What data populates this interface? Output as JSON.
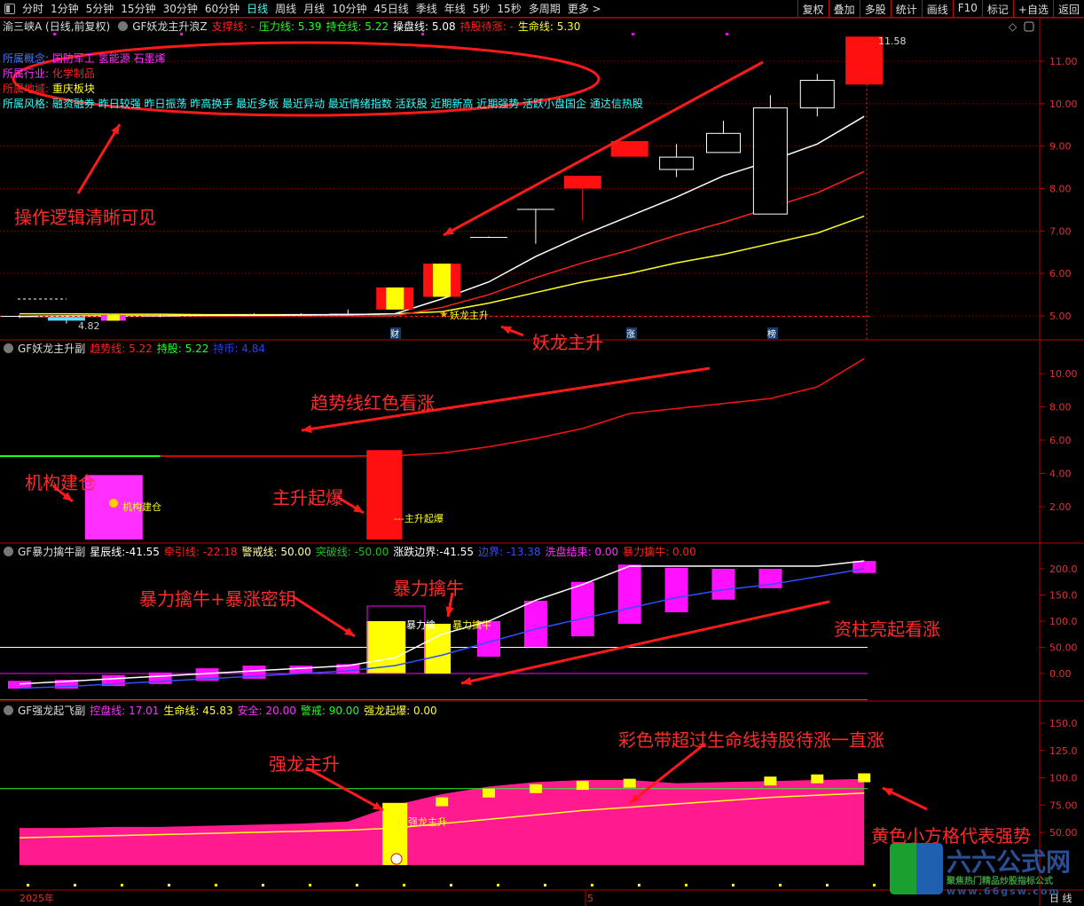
{
  "toolbar": {
    "periods": [
      "分时",
      "1分钟",
      "5分钟",
      "15分钟",
      "30分钟",
      "60分钟",
      "日线",
      "周线",
      "月线",
      "10分钟",
      "45日线",
      "季线",
      "年线",
      "5秒",
      "15秒",
      "多周期",
      "更多 >"
    ],
    "active": "日线",
    "actions": [
      "复权",
      "叠加",
      "多股",
      "统计",
      "画线",
      "F10",
      "标记",
      "+自选",
      "返回"
    ]
  },
  "panel1": {
    "stock": "渝三峡A (日线,前复权)",
    "indicator": "GF妖龙主升浪Z",
    "fields": [
      {
        "label": "支撑线:",
        "value": " -",
        "color": "#ff2020"
      },
      {
        "label": "压力线:",
        "value": " 5.39",
        "color": "#20ff20"
      },
      {
        "label": "持仓线:",
        "value": " 5.22",
        "color": "#20ff20"
      },
      {
        "label": "操盘线:",
        "value": " 5.08",
        "color": "#ffffff"
      },
      {
        "label": "持股待涨:",
        "value": " -",
        "color": "#ff2020"
      },
      {
        "label": "生命线:",
        "value": " 5.30",
        "color": "#ffff20"
      }
    ],
    "info": [
      {
        "label": "所属概念:",
        "value": "国防军工 氢能源 石墨烯",
        "lc": "#3a7cff",
        "vc": "#ff30ff"
      },
      {
        "label": "所属行业:",
        "value": "化学制品",
        "lc": "#ff30ff",
        "vc": "#ff2020"
      },
      {
        "label": "所属地域:",
        "value": "重庆板块",
        "lc": "#ff2020",
        "vc": "#ffff20"
      },
      {
        "label": "所属风格:",
        "value": "融资融券 昨日较强 昨日振荡 昨高换手 最近多板 最近异动 最近情绪指数 活跃股 近期新高 近期强势 活跃小盘国企 通达信热股",
        "lc": "#30ffff",
        "vc": "#30ffff"
      }
    ],
    "high_label": "11.58",
    "low_label": "4.82",
    "signal_label": "妖龙主升",
    "markers": [
      "财",
      "涨",
      "榜"
    ],
    "axis": [
      "11.00",
      "10.00",
      "9.00",
      "8.00",
      "7.00",
      "6.00",
      "5.00"
    ]
  },
  "panel2": {
    "indicator": "GF妖龙主升副",
    "fields": [
      {
        "label": "趋势线:",
        "value": " 5.22",
        "color": "#ff2020"
      },
      {
        "label": "持股:",
        "value": " 5.22",
        "color": "#20ff20"
      },
      {
        "label": "持币:",
        "value": " 4.84",
        "color": "#2040ff"
      }
    ],
    "labels": [
      "机构建仓",
      "---主升起爆"
    ],
    "axis": [
      "10.00",
      "8.00",
      "6.00",
      "4.00",
      "2.00"
    ]
  },
  "panel3": {
    "indicator": "GF暴力擒牛副",
    "fields": [
      {
        "label": "星辰线:",
        "value": "-41.55",
        "color": "#ffffff"
      },
      {
        "label": "牵引线:",
        "value": " -22.18",
        "color": "#ff2020"
      },
      {
        "label": "警戒线:",
        "value": " 50.00",
        "color": "#ffffa0"
      },
      {
        "label": "突破线:",
        "value": " -50.00",
        "color": "#20c020"
      },
      {
        "label": "涨跌边界:",
        "value": "-41.55",
        "color": "#ffffff"
      },
      {
        "label": "边界:",
        "value": " -13.38",
        "color": "#3050ff"
      },
      {
        "label": "洗盘结束:",
        "value": " 0.00",
        "color": "#ff30ff"
      },
      {
        "label": "暴力擒牛:",
        "value": " 0.00",
        "color": "#ff2020"
      }
    ],
    "labels": [
      "暴力擒",
      "暴力擒牛"
    ],
    "axis": [
      "200.0",
      "150.0",
      "100.0",
      "50.00",
      "0.00"
    ]
  },
  "panel4": {
    "indicator": "GF强龙起飞副",
    "fields": [
      {
        "label": "控盘线:",
        "value": " 17.01",
        "color": "#ff30ff"
      },
      {
        "label": "生命线:",
        "value": " 45.83",
        "color": "#ffff20"
      },
      {
        "label": "安全:",
        "value": " 20.00",
        "color": "#ff30ff"
      },
      {
        "label": "警戒:",
        "value": " 90.00",
        "color": "#20ff20"
      },
      {
        "label": "强龙起爆:",
        "value": " 0.00",
        "color": "#ffff20"
      }
    ],
    "labels": [
      "强龙主升"
    ],
    "axis": [
      "150.0",
      "125.0",
      "100.0",
      "75.00",
      "50.00"
    ]
  },
  "xaxis": {
    "labels": [
      "2025年",
      "5"
    ],
    "corner": "日 线"
  },
  "annotations": [
    "操作逻辑清晰可见",
    "妖龙主升",
    "趋势线红色看涨",
    "机构建仓",
    "主升起爆",
    "暴力擒牛+暴涨密钥",
    "暴力擒牛",
    "资柱亮起看涨",
    "强龙主升",
    "彩色带超过生命线持股待涨一直涨",
    "黄色小方格代表强势"
  ],
  "logo": {
    "name": "六六公式网",
    "slogan": "聚焦热门精品炒股指标公式",
    "url": "www.66gsw.com"
  },
  "chart_data": [
    {
      "type": "candlestick",
      "title": "GF妖龙主升浪Z",
      "ylim": [
        4.6,
        11.8
      ],
      "candles": [
        {
          "o": 5.0,
          "h": 5.02,
          "l": 4.95,
          "c": 4.98,
          "s": "w"
        },
        {
          "o": 4.97,
          "h": 5.0,
          "l": 4.82,
          "c": 4.93,
          "s": "c"
        },
        {
          "o": 4.95,
          "h": 5.03,
          "l": 4.93,
          "c": 5.02,
          "s": "my"
        },
        {
          "o": 5.0,
          "h": 5.03,
          "l": 4.97,
          "c": 5.01,
          "s": "w"
        },
        {
          "o": 5.01,
          "h": 5.04,
          "l": 4.99,
          "c": 5.02,
          "s": "w"
        },
        {
          "o": 5.02,
          "h": 5.06,
          "l": 5.0,
          "c": 5.03,
          "s": "w"
        },
        {
          "o": 5.02,
          "h": 5.06,
          "l": 5.0,
          "c": 5.04,
          "s": "w"
        },
        {
          "o": 5.03,
          "h": 5.15,
          "l": 5.02,
          "c": 5.05,
          "s": "w"
        },
        {
          "o": 5.15,
          "h": 5.67,
          "l": 5.15,
          "c": 5.67,
          "s": "ry"
        },
        {
          "o": 5.45,
          "h": 6.23,
          "l": 5.45,
          "c": 6.23,
          "s": "ry"
        },
        {
          "o": 6.85,
          "h": 6.87,
          "l": 6.85,
          "c": 6.86,
          "s": "w"
        },
        {
          "o": 7.5,
          "h": 7.52,
          "l": 6.7,
          "c": 7.52,
          "s": "w"
        },
        {
          "o": 8.3,
          "h": 8.3,
          "l": 7.25,
          "c": 8.0,
          "s": "r"
        },
        {
          "o": 9.12,
          "h": 9.12,
          "l": 8.75,
          "c": 8.75,
          "s": "r"
        },
        {
          "o": 8.45,
          "h": 9.05,
          "l": 8.27,
          "c": 8.74,
          "s": "h"
        },
        {
          "o": 8.85,
          "h": 9.6,
          "l": 8.85,
          "c": 9.3,
          "s": "h"
        },
        {
          "o": 7.4,
          "h": 10.2,
          "l": 7.4,
          "c": 9.9,
          "s": "h"
        },
        {
          "o": 9.9,
          "h": 10.7,
          "l": 9.7,
          "c": 10.55,
          "s": "h"
        },
        {
          "o": 10.45,
          "h": 11.58,
          "l": 10.45,
          "c": 11.58,
          "s": "r"
        }
      ],
      "ma_white": [
        4.99,
        5.0,
        5.0,
        5.0,
        5.01,
        5.01,
        5.02,
        5.03,
        5.05,
        5.4,
        5.8,
        6.4,
        6.9,
        7.35,
        7.8,
        8.3,
        8.65,
        9.05,
        9.7
      ],
      "ma_red": [
        4.98,
        4.98,
        4.99,
        4.99,
        5.0,
        5.0,
        5.0,
        5.0,
        5.0,
        5.2,
        5.5,
        5.9,
        6.25,
        6.55,
        6.9,
        7.2,
        7.55,
        7.9,
        8.4
      ],
      "ma_yellow": [
        5.05,
        5.05,
        5.04,
        5.04,
        5.03,
        5.03,
        5.03,
        5.03,
        5.05,
        5.1,
        5.3,
        5.55,
        5.8,
        6.0,
        6.25,
        6.45,
        6.7,
        6.95,
        7.35
      ]
    },
    {
      "type": "line",
      "title": "GF妖龙主升副",
      "ylim": [
        0.6,
        11.5
      ],
      "trend": [
        5.04,
        5.04,
        5.04,
        5.04,
        5.04,
        5.04,
        5.04,
        5.04,
        5.06,
        5.22,
        5.6,
        6.1,
        6.7,
        7.6,
        7.9,
        8.2,
        8.5,
        9.2,
        10.9
      ],
      "green_until": 3,
      "bars": [
        {
          "i": 2,
          "top": 3.9,
          "color": "#ff30ff"
        },
        {
          "i": 8,
          "top": 5.4,
          "color": "#ff1010"
        }
      ]
    },
    {
      "type": "bar",
      "title": "GF暴力擒牛副",
      "ylim": [
        -55,
        230
      ],
      "bars": [
        [
          0,
          -29,
          -14
        ],
        [
          1,
          -29,
          -12
        ],
        [
          2,
          -24,
          -3
        ],
        [
          3,
          -20,
          2
        ],
        [
          4,
          -14,
          10
        ],
        [
          5,
          -10,
          15
        ],
        [
          6,
          -1,
          15
        ],
        [
          7,
          0,
          18
        ],
        [
          10,
          32,
          100
        ],
        [
          11,
          51,
          139
        ],
        [
          12,
          71,
          175
        ],
        [
          13,
          95,
          208
        ],
        [
          14,
          117,
          202
        ],
        [
          15,
          141,
          200
        ],
        [
          16,
          163,
          200
        ],
        [
          18,
          192,
          215
        ]
      ],
      "yellow": [
        [
          8,
          0,
          100
        ],
        [
          9,
          0,
          95
        ]
      ],
      "white": [
        -20,
        -15,
        -10,
        -5,
        0,
        5,
        10,
        15,
        30,
        75,
        100,
        140,
        170,
        205,
        205,
        205,
        205,
        205,
        215
      ],
      "blue": [
        -28,
        -25,
        -20,
        -15,
        -10,
        -5,
        0,
        5,
        15,
        35,
        60,
        85,
        105,
        125,
        145,
        160,
        170,
        185,
        200
      ],
      "hlines": {
        "white": 50,
        "magenta": 0,
        "green": -50
      }
    },
    {
      "type": "area",
      "title": "GF强龙起飞副",
      "ylim": [
        15,
        165
      ],
      "area": [
        54,
        54,
        55,
        55,
        56,
        57,
        58,
        60,
        75,
        85,
        92,
        96,
        98,
        98,
        95,
        96,
        97,
        98,
        99
      ],
      "life": [
        45,
        46,
        47,
        48,
        49,
        50,
        51,
        52,
        54,
        58,
        62,
        66,
        70,
        73,
        76,
        79,
        82,
        84,
        86
      ],
      "squares": [
        [
          9,
          78
        ],
        [
          10,
          86
        ],
        [
          11,
          90
        ],
        [
          12,
          93
        ],
        [
          13,
          95
        ],
        [
          16,
          97
        ],
        [
          17,
          99
        ],
        [
          18,
          100
        ]
      ],
      "yellow_bar": [
        8,
        20,
        77
      ],
      "base": 20,
      "warn": 90
    }
  ]
}
